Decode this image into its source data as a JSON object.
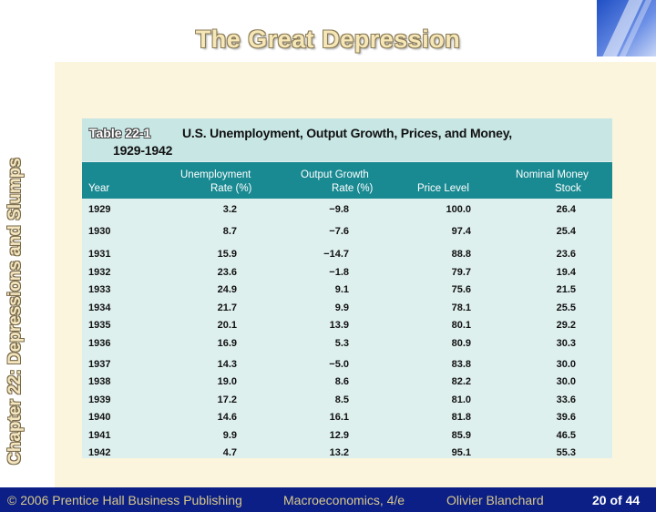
{
  "slide_title": "The Great Depression",
  "chapter_label": "Chapter 22: Depressions and Slumps",
  "table": {
    "label": "Table 22-1",
    "title_line1": "U.S. Unemployment, Output Growth, Prices, and Money,",
    "title_line2": "1929-1942",
    "headers": {
      "year": "Year",
      "unemp_l1": "Unemployment",
      "unemp_l2": "Rate (%)",
      "growth_l1": "Output Growth",
      "growth_l2": "Rate (%)",
      "price": "Price Level",
      "money_l1": "Nominal Money",
      "money_l2": "Stock"
    },
    "rows": [
      [
        "1929",
        "3.2",
        "−9.8",
        "100.0",
        "26.4"
      ],
      [
        "1930",
        "8.7",
        "−7.6",
        "97.4",
        "25.4"
      ],
      [
        "1931",
        "15.9",
        "−14.7",
        "88.8",
        "23.6"
      ],
      [
        "1932",
        "23.6",
        "−1.8",
        "79.7",
        "19.4"
      ],
      [
        "1933",
        "24.9",
        "9.1",
        "75.6",
        "21.5"
      ],
      [
        "1934",
        "21.7",
        "9.9",
        "78.1",
        "25.5"
      ],
      [
        "1935",
        "20.1",
        "13.9",
        "80.1",
        "29.2"
      ],
      [
        "1936",
        "16.9",
        "5.3",
        "80.9",
        "30.3"
      ],
      [
        "1937",
        "14.3",
        "−5.0",
        "83.8",
        "30.0"
      ],
      [
        "1938",
        "19.0",
        "8.6",
        "82.2",
        "30.0"
      ],
      [
        "1939",
        "17.2",
        "8.5",
        "81.0",
        "33.6"
      ],
      [
        "1940",
        "14.6",
        "16.1",
        "81.8",
        "39.6"
      ],
      [
        "1941",
        "9.9",
        "12.9",
        "85.9",
        "46.5"
      ],
      [
        "1942",
        "4.7",
        "13.2",
        "95.1",
        "55.3"
      ]
    ]
  },
  "footer": {
    "copyright": "© 2006 Prentice Hall Business Publishing",
    "book": "Macroeconomics, 4/e",
    "author": "Olivier Blanchard",
    "page": "20 of 44"
  },
  "colors": {
    "footer_bg": "#0b1f86",
    "header_bg": "#1a8a92",
    "table_bg": "#def0ee",
    "caption_bg": "#c7e6e4",
    "content_bg": "#fbf5dd"
  }
}
